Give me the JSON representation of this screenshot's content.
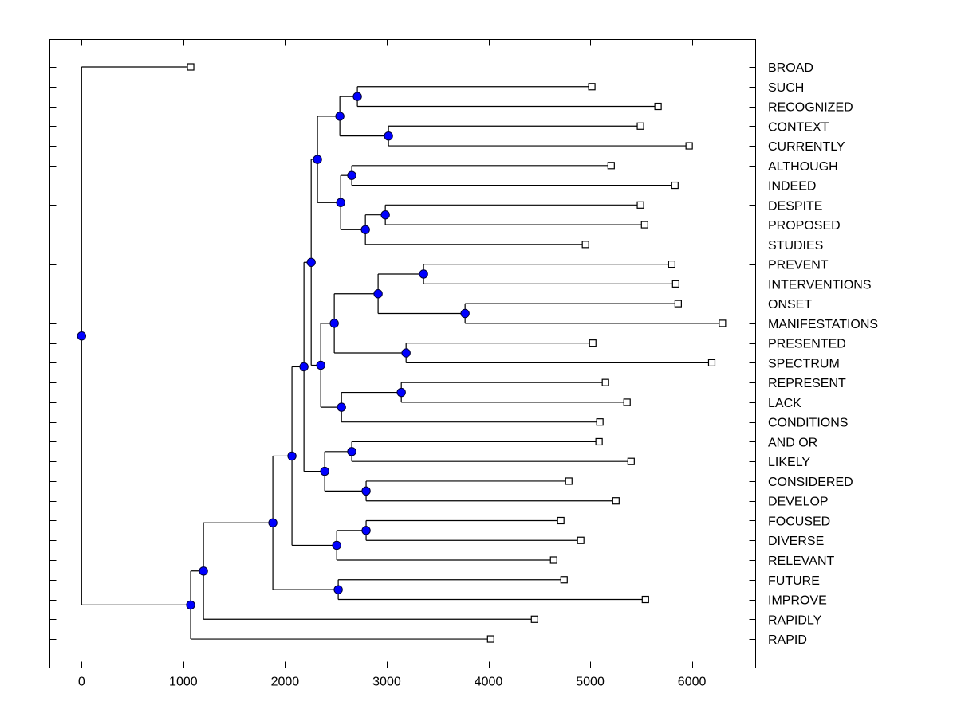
{
  "chart_data": {
    "type": "dendrogram",
    "title": "",
    "xlabel": "",
    "ylabel": "",
    "xlim": [
      -300,
      6600
    ],
    "x_ticks": [
      0,
      1000,
      2000,
      3000,
      4000,
      5000,
      6000
    ],
    "x_tick_labels": [
      "0",
      "1000",
      "2000",
      "3000",
      "4000",
      "5000",
      "6000"
    ],
    "orientation": "left-root, labels-right",
    "colors": {
      "node_fill": "#0000ff",
      "node_stroke": "#000033",
      "leaf_fill": "#ffffff",
      "line": "#000000"
    },
    "leaves": [
      {
        "label": "BROAD",
        "value": 1072
      },
      {
        "label": "SUCH",
        "value": 5016
      },
      {
        "label": "RECOGNIZED",
        "value": 5667
      },
      {
        "label": "CONTEXT",
        "value": 5494
      },
      {
        "label": "CURRENTLY",
        "value": 5973
      },
      {
        "label": "ALTHOUGH",
        "value": 5206
      },
      {
        "label": "INDEED",
        "value": 5833
      },
      {
        "label": "DESPITE",
        "value": 5494
      },
      {
        "label": "PROPOSED",
        "value": 5535
      },
      {
        "label": "STUDIES",
        "value": 4954
      },
      {
        "label": "PREVENT",
        "value": 5802
      },
      {
        "label": "INTERVENTIONS",
        "value": 5841
      },
      {
        "label": "ONSET",
        "value": 5865
      },
      {
        "label": "MANIFESTATIONS",
        "value": 6300
      },
      {
        "label": "PRESENTED",
        "value": 5025
      },
      {
        "label": "SPECTRUM",
        "value": 6195
      },
      {
        "label": "REPRESENT",
        "value": 5150
      },
      {
        "label": "LACK",
        "value": 5362
      },
      {
        "label": "CONDITIONS",
        "value": 5095
      },
      {
        "label": "AND OR",
        "value": 5087
      },
      {
        "label": "LIKELY",
        "value": 5402
      },
      {
        "label": "CONSIDERED",
        "value": 4790
      },
      {
        "label": "DEVELOP",
        "value": 5253
      },
      {
        "label": "FOCUSED",
        "value": 4711
      },
      {
        "label": "DIVERSE",
        "value": 4907
      },
      {
        "label": "RELEVANT",
        "value": 4641
      },
      {
        "label": "FUTURE",
        "value": 4743
      },
      {
        "label": "IMPROVE",
        "value": 5543
      },
      {
        "label": "RAPIDLY",
        "value": 4453
      },
      {
        "label": "RAPID",
        "value": 4022
      }
    ],
    "tree": {
      "value": 0,
      "children": [
        {
          "leaf": 0
        },
        {
          "value": 1072,
          "children": [
            {
              "value": 1198,
              "children": [
                {
                  "value": 1880,
                  "children": [
                    {
                      "value": 2068,
                      "children": [
                        {
                          "value": 2186,
                          "children": [
                            {
                              "value": 2257,
                              "children": [
                                {
                                  "value": 2319,
                                  "children": [
                                    {
                                      "value": 2539,
                                      "children": [
                                        {
                                          "value": 2711,
                                          "children": [
                                            {
                                              "leaf": 1
                                            },
                                            {
                                              "leaf": 2
                                            }
                                          ]
                                        },
                                        {
                                          "value": 3017,
                                          "children": [
                                            {
                                              "leaf": 3
                                            },
                                            {
                                              "leaf": 4
                                            }
                                          ]
                                        }
                                      ]
                                    },
                                    {
                                      "value": 2547,
                                      "children": [
                                        {
                                          "value": 2656,
                                          "children": [
                                            {
                                              "leaf": 5
                                            },
                                            {
                                              "leaf": 6
                                            }
                                          ]
                                        },
                                        {
                                          "value": 2790,
                                          "children": [
                                            {
                                              "value": 2986,
                                              "children": [
                                                {
                                                  "leaf": 7
                                                },
                                                {
                                                  "leaf": 8
                                                }
                                              ]
                                            },
                                            {
                                              "leaf": 9
                                            }
                                          ]
                                        }
                                      ]
                                    }
                                  ]
                                },
                                {
                                  "value": 2351,
                                  "children": [
                                    {
                                      "value": 2484,
                                      "children": [
                                        {
                                          "value": 2915,
                                          "children": [
                                            {
                                              "value": 3362,
                                              "children": [
                                                {
                                                  "leaf": 10
                                                },
                                                {
                                                  "leaf": 11
                                                }
                                              ]
                                            },
                                            {
                                              "value": 3770,
                                              "children": [
                                                {
                                                  "leaf": 12
                                                },
                                                {
                                                  "leaf": 13
                                                }
                                              ]
                                            }
                                          ]
                                        },
                                        {
                                          "value": 3190,
                                          "children": [
                                            {
                                              "leaf": 14
                                            },
                                            {
                                              "leaf": 15
                                            }
                                          ]
                                        }
                                      ]
                                    },
                                    {
                                      "value": 2555,
                                      "children": [
                                        {
                                          "value": 3143,
                                          "children": [
                                            {
                                              "leaf": 16
                                            },
                                            {
                                              "leaf": 17
                                            }
                                          ]
                                        },
                                        {
                                          "leaf": 18
                                        }
                                      ]
                                    }
                                  ]
                                }
                              ]
                            },
                            {
                              "value": 2390,
                              "children": [
                                {
                                  "value": 2656,
                                  "children": [
                                    {
                                      "leaf": 19
                                    },
                                    {
                                      "leaf": 20
                                    }
                                  ]
                                },
                                {
                                  "value": 2797,
                                  "children": [
                                    {
                                      "leaf": 21
                                    },
                                    {
                                      "leaf": 22
                                    }
                                  ]
                                }
                              ]
                            }
                          ]
                        },
                        {
                          "value": 2508,
                          "children": [
                            {
                              "value": 2797,
                              "children": [
                                {
                                  "leaf": 23
                                },
                                {
                                  "leaf": 24
                                }
                              ]
                            },
                            {
                              "leaf": 25
                            }
                          ]
                        }
                      ]
                    },
                    {
                      "value": 2523,
                      "children": [
                        {
                          "leaf": 26
                        },
                        {
                          "leaf": 27
                        }
                      ]
                    }
                  ]
                },
                {
                  "leaf": 28
                }
              ]
            },
            {
              "leaf": 29
            }
          ]
        }
      ]
    }
  }
}
